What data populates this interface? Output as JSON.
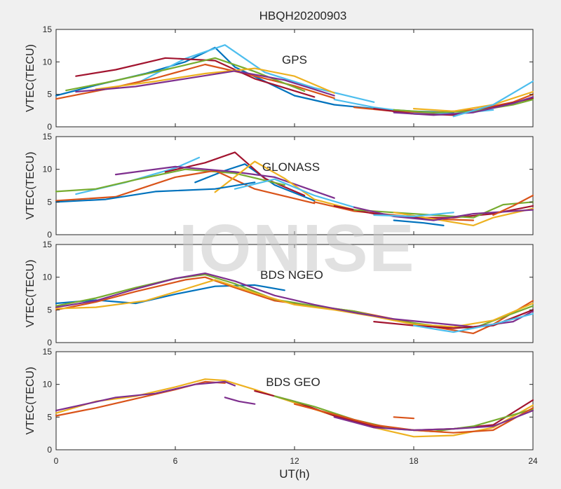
{
  "chart_data": {
    "type": "line",
    "title": "HBQH20200903",
    "xlabel": "UT(h)",
    "ylabel": "VTEC(TECU)",
    "xlim": [
      0,
      24
    ],
    "xticks": [
      0,
      6,
      12,
      18,
      24
    ],
    "ylim": [
      0,
      15
    ],
    "yticks": [
      0,
      5,
      10,
      15
    ],
    "grid": false,
    "watermark": "IONISE",
    "panels": [
      {
        "label": "GPS",
        "series": [
          {
            "color": "#0072bd",
            "x": [
              0.0,
              2.0,
              4.5,
              6.5,
              8.0,
              9.0,
              12.0
            ],
            "y": [
              4.8,
              6.4,
              8.2,
              10.0,
              12.2,
              9.2,
              4.8
            ]
          },
          {
            "color": "#4dbeee",
            "x": [
              4.0,
              6.5,
              8.5,
              10.5,
              13.0,
              16.0
            ],
            "y": [
              6.6,
              10.5,
              12.6,
              8.4,
              6.0,
              3.8
            ]
          },
          {
            "color": "#d95319",
            "x": [
              0.0,
              2.5,
              5.0,
              7.5,
              9.5,
              12.0,
              14.0
            ],
            "y": [
              4.3,
              5.8,
              7.5,
              9.6,
              8.2,
              6.3,
              4.4
            ]
          },
          {
            "color": "#a2142f",
            "x": [
              1.0,
              3.0,
              5.5,
              8.0,
              10.0,
              13.0
            ],
            "y": [
              7.8,
              8.8,
              10.6,
              10.2,
              7.4,
              4.6
            ]
          },
          {
            "color": "#77ac30",
            "x": [
              0.5,
              2.5,
              5.5,
              8.0,
              10.0,
              12.5
            ],
            "y": [
              5.6,
              6.8,
              8.8,
              10.6,
              8.5,
              5.5
            ]
          },
          {
            "color": "#edb120",
            "x": [
              2.0,
              5.0,
              7.5,
              10.0,
              12.0,
              14.0
            ],
            "y": [
              5.8,
              7.0,
              8.2,
              9.0,
              7.8,
              5.2
            ]
          },
          {
            "color": "#7e2f8e",
            "x": [
              1.0,
              4.0,
              6.5,
              9.0,
              11.5,
              14.0
            ],
            "y": [
              5.4,
              6.2,
              7.4,
              8.6,
              7.2,
              4.8
            ]
          },
          {
            "color": "#0072bd",
            "x": [
              12.0,
              14.0,
              16.0,
              18.0,
              20.0
            ],
            "y": [
              4.8,
              3.4,
              2.8,
              2.4,
              2.2
            ]
          },
          {
            "color": "#4dbeee",
            "x": [
              14.0,
              16.0,
              18.0,
              20.0,
              22.0
            ],
            "y": [
              4.2,
              3.0,
              2.2,
              2.0,
              2.6
            ]
          },
          {
            "color": "#d95319",
            "x": [
              15.0,
              17.0,
              19.0,
              21.0,
              23.0,
              24.0
            ],
            "y": [
              3.0,
              2.4,
              2.2,
              2.6,
              3.8,
              5.0
            ]
          },
          {
            "color": "#a2142f",
            "x": [
              16.0,
              18.0,
              20.0,
              22.0,
              24.0
            ],
            "y": [
              2.8,
              2.0,
              1.8,
              3.0,
              4.4
            ]
          },
          {
            "color": "#77ac30",
            "x": [
              17.0,
              19.0,
              21.0,
              23.0,
              24.0
            ],
            "y": [
              2.6,
              2.2,
              2.4,
              3.4,
              4.2
            ]
          },
          {
            "color": "#edb120",
            "x": [
              18.0,
              20.0,
              22.0,
              24.0
            ],
            "y": [
              2.8,
              2.4,
              3.4,
              5.4
            ]
          },
          {
            "color": "#7e2f8e",
            "x": [
              17.0,
              19.0,
              21.0,
              23.0,
              24.0
            ],
            "y": [
              2.2,
              1.8,
              2.2,
              3.6,
              4.6
            ]
          },
          {
            "color": "#4dbeee",
            "x": [
              20.0,
              22.0,
              24.0
            ],
            "y": [
              1.6,
              3.4,
              7.0
            ]
          }
        ]
      },
      {
        "label": "GLONASS",
        "series": [
          {
            "color": "#4dbeee",
            "x": [
              1.0,
              3.5,
              6.0,
              7.2
            ],
            "y": [
              6.2,
              8.0,
              10.2,
              11.8
            ]
          },
          {
            "color": "#0072bd",
            "x": [
              7.0,
              8.5,
              9.5,
              11.0,
              13.0
            ],
            "y": [
              8.0,
              9.8,
              10.8,
              7.6,
              5.2
            ]
          },
          {
            "color": "#a2142f",
            "x": [
              5.5,
              7.5,
              9.0,
              10.5,
              12.5
            ],
            "y": [
              9.6,
              11.0,
              12.6,
              8.6,
              6.0
            ]
          },
          {
            "color": "#77ac30",
            "x": [
              0.0,
              2.0,
              4.0,
              6.5,
              9.0,
              11.5
            ],
            "y": [
              6.6,
              7.0,
              8.4,
              10.0,
              9.4,
              7.6
            ]
          },
          {
            "color": "#d95319",
            "x": [
              0.0,
              3.0,
              6.0,
              8.0,
              10.0,
              13.0
            ],
            "y": [
              5.2,
              5.8,
              8.8,
              9.8,
              7.0,
              4.8
            ]
          },
          {
            "color": "#7e2f8e",
            "x": [
              3.0,
              6.0,
              9.0,
              11.0,
              14.0
            ],
            "y": [
              9.2,
              10.4,
              9.6,
              8.8,
              5.6
            ]
          },
          {
            "color": "#edb120",
            "x": [
              8.0,
              10.0,
              11.5,
              13.0,
              15.0
            ],
            "y": [
              6.5,
              11.2,
              8.6,
              5.4,
              3.8
            ]
          },
          {
            "color": "#4dbeee",
            "x": [
              9.0,
              11.0,
              13.0,
              15.0
            ],
            "y": [
              7.0,
              8.5,
              6.0,
              4.2
            ]
          },
          {
            "color": "#0072bd",
            "x": [
              0.0,
              2.5,
              5.0,
              8.0,
              10.0
            ],
            "y": [
              5.0,
              5.4,
              6.6,
              7.0,
              8.0
            ]
          },
          {
            "color": "#d95319",
            "x": [
              13.0,
              15.0,
              17.0,
              19.0,
              21.0
            ],
            "y": [
              5.0,
              3.6,
              3.0,
              2.4,
              2.2
            ]
          },
          {
            "color": "#a2142f",
            "x": [
              14.0,
              16.0,
              18.0,
              20.0,
              22.0,
              24.0
            ],
            "y": [
              4.4,
              3.2,
              2.6,
              2.6,
              3.2,
              4.4
            ]
          },
          {
            "color": "#77ac30",
            "x": [
              15.0,
              17.0,
              19.0,
              21.0,
              22.5,
              24.0
            ],
            "y": [
              3.8,
              3.4,
              3.0,
              2.6,
              4.6,
              5.0
            ]
          },
          {
            "color": "#edb120",
            "x": [
              17.0,
              19.0,
              21.0,
              22.0,
              24.0
            ],
            "y": [
              3.4,
              2.4,
              1.4,
              2.6,
              4.0
            ]
          },
          {
            "color": "#7e2f8e",
            "x": [
              15.0,
              17.0,
              19.0,
              21.0,
              24.0
            ],
            "y": [
              4.2,
              2.8,
              2.2,
              3.2,
              3.8
            ]
          },
          {
            "color": "#4dbeee",
            "x": [
              16.0,
              18.0,
              20.0
            ],
            "y": [
              3.0,
              2.8,
              3.4
            ]
          },
          {
            "color": "#0072bd",
            "x": [
              17.0,
              18.5,
              19.5
            ],
            "y": [
              2.2,
              1.8,
              1.4
            ]
          },
          {
            "color": "#d95319",
            "x": [
              22.0,
              23.0,
              24.0
            ],
            "y": [
              3.0,
              4.4,
              6.0
            ]
          }
        ]
      },
      {
        "label": "BDS NGEO",
        "series": [
          {
            "color": "#0072bd",
            "x": [
              0.0,
              2.0,
              4.0,
              6.0,
              8.0,
              10.0,
              11.5
            ],
            "y": [
              6.0,
              6.5,
              6.0,
              7.4,
              8.6,
              8.8,
              8.0
            ]
          },
          {
            "color": "#d95319",
            "x": [
              0.0,
              2.0,
              4.0,
              6.5,
              7.5,
              9.0,
              11.0,
              13.0,
              15.0,
              17.0,
              19.0,
              21.0,
              22.0,
              24.0
            ],
            "y": [
              5.0,
              6.2,
              7.8,
              9.6,
              10.0,
              8.4,
              6.4,
              5.6,
              4.8,
              3.6,
              2.4,
              1.4,
              2.8,
              6.4
            ]
          },
          {
            "color": "#77ac30",
            "x": [
              0.0,
              2.0,
              4.0,
              6.0,
              7.5,
              9.0,
              11.0,
              13.0,
              15.0,
              17.0,
              19.0,
              21.0,
              24.0
            ],
            "y": [
              5.6,
              6.8,
              8.4,
              9.8,
              10.4,
              9.0,
              6.6,
              5.6,
              4.8,
              3.4,
              2.6,
              2.2,
              5.6
            ]
          },
          {
            "color": "#edb120",
            "x": [
              0.0,
              2.0,
              4.5,
              6.5,
              8.0,
              10.0,
              12.0,
              14.0,
              16.0,
              18.0,
              20.0,
              22.0,
              24.0
            ],
            "y": [
              5.2,
              5.4,
              6.4,
              8.2,
              9.6,
              7.6,
              5.8,
              5.0,
              4.0,
              2.8,
              2.4,
              3.4,
              6.0
            ]
          },
          {
            "color": "#7e2f8e",
            "x": [
              0.0,
              2.0,
              4.0,
              6.0,
              7.5,
              9.0,
              11.0,
              13.0,
              15.0,
              17.0,
              19.0,
              21.0,
              23.0,
              24.0
            ],
            "y": [
              5.4,
              6.4,
              8.2,
              9.8,
              10.6,
              9.4,
              7.2,
              5.8,
              4.6,
              3.6,
              3.0,
              2.4,
              3.2,
              4.8
            ]
          },
          {
            "color": "#a2142f",
            "x": [
              16.0,
              18.0,
              20.0,
              22.0,
              24.0
            ],
            "y": [
              3.2,
              2.6,
              2.2,
              2.6,
              5.0
            ]
          },
          {
            "color": "#4dbeee",
            "x": [
              18.0,
              20.0,
              22.0,
              24.0
            ],
            "y": [
              2.6,
              1.6,
              2.8,
              4.4
            ]
          }
        ]
      },
      {
        "label": "BDS GEO",
        "series": [
          {
            "color": "#edb120",
            "x": [
              0.0,
              2.0,
              4.0,
              6.0,
              7.5,
              8.5,
              10.0,
              12.0,
              14.0,
              16.0,
              18.0,
              20.0,
              22.0,
              24.0
            ],
            "y": [
              5.6,
              7.4,
              8.2,
              9.6,
              10.8,
              10.6,
              9.2,
              7.2,
              5.2,
              3.4,
              2.0,
              2.2,
              3.4,
              6.8
            ]
          },
          {
            "color": "#d95319",
            "x": [
              0.0,
              2.0,
              4.0,
              6.0,
              7.5,
              8.5
            ],
            "y": [
              5.2,
              6.4,
              7.8,
              9.2,
              10.4,
              10.2
            ]
          },
          {
            "color": "#7e2f8e",
            "x": [
              0.0,
              1.5,
              3.0,
              5.0,
              7.0,
              8.5,
              9.0
            ],
            "y": [
              6.0,
              7.0,
              8.0,
              8.6,
              10.0,
              10.4,
              9.8
            ]
          },
          {
            "color": "#7e2f8e",
            "x": [
              8.5,
              9.2,
              10.0
            ],
            "y": [
              8.0,
              7.4,
              7.0
            ]
          },
          {
            "color": "#a2142f",
            "x": [
              10.0,
              12.0,
              14.0,
              16.0,
              18.0,
              20.0,
              22.0,
              24.0
            ],
            "y": [
              9.0,
              7.4,
              5.2,
              3.6,
              3.0,
              3.2,
              3.8,
              7.6
            ]
          },
          {
            "color": "#77ac30",
            "x": [
              11.0,
              13.0,
              15.0,
              17.0,
              19.0,
              21.0,
              24.0
            ],
            "y": [
              8.2,
              6.6,
              4.6,
              3.2,
              2.8,
              3.6,
              6.2
            ]
          },
          {
            "color": "#d95319",
            "x": [
              12.0,
              14.0,
              16.0,
              18.0,
              20.0,
              22.0,
              24.0
            ],
            "y": [
              7.0,
              5.4,
              3.8,
              3.0,
              2.6,
              3.0,
              6.4
            ]
          },
          {
            "color": "#7e2f8e",
            "x": [
              14.0,
              16.0,
              18.0,
              20.0,
              22.0,
              24.0
            ],
            "y": [
              5.0,
              3.4,
              3.0,
              3.2,
              3.6,
              6.0
            ]
          },
          {
            "color": "#d95319",
            "x": [
              17.0,
              18.0
            ],
            "y": [
              5.0,
              4.8
            ]
          }
        ]
      }
    ]
  }
}
